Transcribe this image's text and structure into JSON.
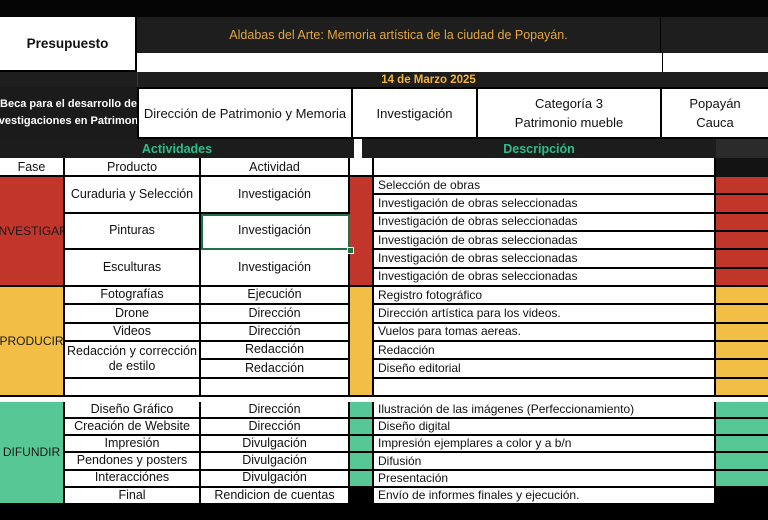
{
  "palette": {
    "phase_red": "#C1352B",
    "phase_yellow": "#F2BE45",
    "phase_green": "#57C795",
    "gold_text": "#E2A63C",
    "teal_text": "#2BBE8A",
    "dark_header": "#1E1E1E",
    "selection_green": "#1E7145"
  },
  "header": {
    "presupuesto": "Presupuesto",
    "title": "Aldabas del Arte: Memoria artística de la ciudad de Popayán.",
    "date": "14 de Marzo 2025",
    "beca_line1": "Beca para el desarrollo de",
    "beca_line2": "investigaciones en Patrimonio",
    "direccion": "Dirección de Patrimonio y Memoria",
    "modalidad": "Investigación",
    "categoria_line1": "Categoría 3",
    "categoria_line2": "Patrimonio mueble",
    "ciudad": "Popayán",
    "departamento": "Cauca"
  },
  "table": {
    "bar_actividades": "Actividades",
    "bar_descripcion": "Descripción",
    "col_fase": "Fase",
    "col_producto": "Producto",
    "col_actividad": "Actividad",
    "sections": [
      {
        "fase": "INVESTIGAR",
        "productos": [
          "Curaduria y Selección",
          "Pinturas",
          "Esculturas"
        ],
        "actividades": [
          "Investigación",
          "Investigación",
          "Investigación"
        ],
        "descripciones": [
          "Selección de obras",
          "Investigación de obras seleccionadas",
          "Investigación de obras seleccionadas",
          "Investigación de obras seleccionadas",
          "Investigación de obras seleccionadas",
          "Investigación de obras seleccionadas"
        ]
      },
      {
        "fase": "PRODUCIR",
        "productos": [
          "Fotografías",
          "Drone",
          "Videos",
          "Redacción y corrección de estilo",
          ""
        ],
        "actividades": [
          "Ejecución",
          "Dirección",
          "Dirección",
          "Redacción",
          "Redacción",
          ""
        ],
        "descripciones": [
          "Registro fotográfico",
          "Dirección artística para los videos.",
          "Vuelos para tomas aereas.",
          "Redacción",
          "Diseño editorial",
          ""
        ]
      },
      {
        "fase": "DIFUNDIR",
        "productos": [
          "Diseño Gráfico",
          "Creación de Website",
          "Impresión",
          "Pendones y posters",
          "Interacciónes",
          "Final"
        ],
        "actividades": [
          "Dirección",
          "Dirección",
          "Divulgación",
          "Divulgación",
          "Divulgación",
          "Rendicion de cuentas"
        ],
        "descripciones": [
          "Ilustración de las imágenes (Perfeccionamiento)",
          "Diseño digital",
          "Impresión ejemplares a color y a b/n",
          "Difusión",
          "Presentación",
          "Envío de informes finales y ejecución."
        ]
      }
    ]
  }
}
